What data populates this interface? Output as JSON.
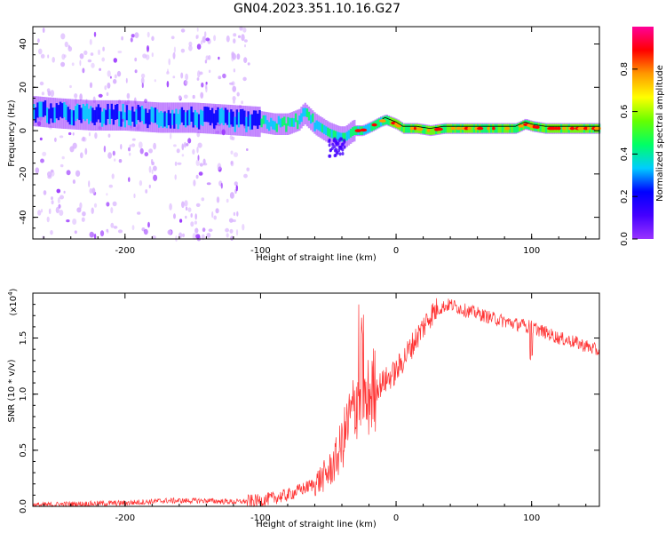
{
  "title": "GN04.2023.351.10.16.G27",
  "colors": {
    "spectrogram_palette": [
      "#ffffff",
      "#d9b3ff",
      "#9933ff",
      "#4400ff",
      "#0000ff",
      "#00ccff",
      "#00ff66",
      "#66ff00",
      "#ffff00",
      "#ff9900",
      "#ff0000",
      "#ff0099"
    ],
    "snr_line": "#ff3333"
  },
  "chart_data": [
    {
      "type": "heatmap",
      "name": "spectrogram",
      "xlabel": "Height of straight line (km)",
      "ylabel": "Frequency (Hz)",
      "xlim": [
        -268,
        150
      ],
      "ylim": [
        -50,
        48
      ],
      "xticks": [
        -200,
        -100,
        0,
        100
      ],
      "yticks": [
        -40,
        -20,
        0,
        20,
        40
      ],
      "colorbar": {
        "label": "Normalized spectral amplitude",
        "range": [
          0,
          1
        ],
        "ticks": [
          "0.0",
          "0.2",
          "0.4",
          "0.6",
          "0.8"
        ]
      },
      "ridge": {
        "x": [
          -268,
          -250,
          -225,
          -200,
          -175,
          -150,
          -125,
          -100,
          -90,
          -80,
          -72,
          -68,
          -60,
          -50,
          -42,
          -38,
          -32,
          -25,
          -18,
          -12,
          -8,
          -4,
          0,
          5,
          15,
          25,
          35,
          45,
          60,
          75,
          88,
          95,
          100,
          110,
          130,
          150
        ],
        "frequency_hz": [
          9,
          8,
          7,
          7,
          6,
          6,
          5,
          4,
          3,
          3,
          5,
          8,
          3,
          -1,
          -3,
          -3,
          0,
          0,
          2,
          4,
          5,
          4,
          3,
          1,
          1,
          0,
          1,
          1,
          1,
          1,
          1,
          3,
          2,
          1,
          1,
          1
        ]
      }
    },
    {
      "type": "line",
      "name": "snr",
      "xlabel": "Height of straight line (km)",
      "ylabel": "SNR (10 * v/v)",
      "y_multiplier": "(x10",
      "y_multiplier_exp": "4",
      "ylim": [
        0,
        1.9
      ],
      "xticks": [
        -200,
        -100,
        0,
        100
      ],
      "yticks": [
        "0.0",
        "0.5",
        "1.0",
        "1.5"
      ],
      "xlim": [
        -268,
        150
      ],
      "series": [
        {
          "x": [
            -268,
            -240,
            -200,
            -170,
            -140,
            -120,
            -100,
            -80,
            -70,
            -60,
            -50,
            -45,
            -40,
            -35,
            -30,
            -27,
            -25,
            -22,
            -20,
            -15,
            -10,
            -5,
            0,
            5,
            10,
            15,
            20,
            25,
            30,
            35,
            40,
            50,
            60,
            70,
            80,
            90,
            100,
            110,
            120,
            130,
            140,
            150
          ],
          "values": [
            0.01,
            0.02,
            0.03,
            0.05,
            0.05,
            0.04,
            0.05,
            0.1,
            0.15,
            0.2,
            0.3,
            0.4,
            0.55,
            0.75,
            0.9,
            1.1,
            1.15,
            0.85,
            1.0,
            1.05,
            1.1,
            1.15,
            1.2,
            1.3,
            1.4,
            1.5,
            1.6,
            1.7,
            1.75,
            1.78,
            1.8,
            1.75,
            1.72,
            1.68,
            1.65,
            1.62,
            1.6,
            1.55,
            1.5,
            1.47,
            1.43,
            1.38
          ]
        }
      ]
    }
  ]
}
